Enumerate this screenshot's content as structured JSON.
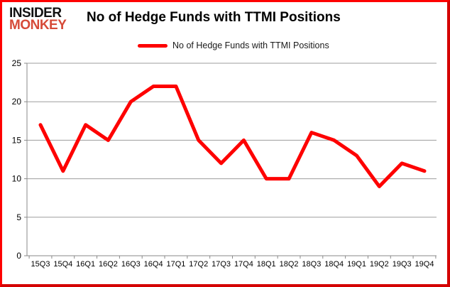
{
  "header": {
    "logo_line1": "INSIDER",
    "logo_line2": "MONKEY",
    "title": "No of Hedge Funds with TTMI Positions"
  },
  "legend": {
    "label": "No of Hedge Funds with TTMI Positions"
  },
  "chart_data": {
    "type": "line",
    "title": "No of Hedge Funds with TTMI Positions",
    "categories": [
      "15Q3",
      "15Q4",
      "16Q1",
      "16Q2",
      "16Q3",
      "16Q4",
      "17Q1",
      "17Q2",
      "17Q3",
      "17Q4",
      "18Q1",
      "18Q2",
      "18Q3",
      "18Q4",
      "19Q1",
      "19Q2",
      "19Q3",
      "19Q4"
    ],
    "series": [
      {
        "name": "No of Hedge Funds with TTMI Positions",
        "color": "#fe0000",
        "values": [
          17,
          11,
          17,
          15,
          20,
          22,
          22,
          15,
          12,
          15,
          10,
          10,
          16,
          15,
          13,
          9,
          12,
          11
        ]
      }
    ],
    "xlabel": "",
    "ylabel": "",
    "ylim": [
      0,
      25
    ],
    "yticks": [
      0,
      5,
      10,
      15,
      20,
      25
    ],
    "grid": true,
    "legend_position": "top-center",
    "axis_color": "#898989",
    "gridline_color": "#9d9d9d"
  },
  "colors": {
    "border": "#fe0000",
    "border_shade": "#d40000",
    "background": "#ffffff",
    "logo_accent": "#d64a38",
    "logo_text": "#111111",
    "line": "#fe0000",
    "tick_label": "#000000"
  }
}
